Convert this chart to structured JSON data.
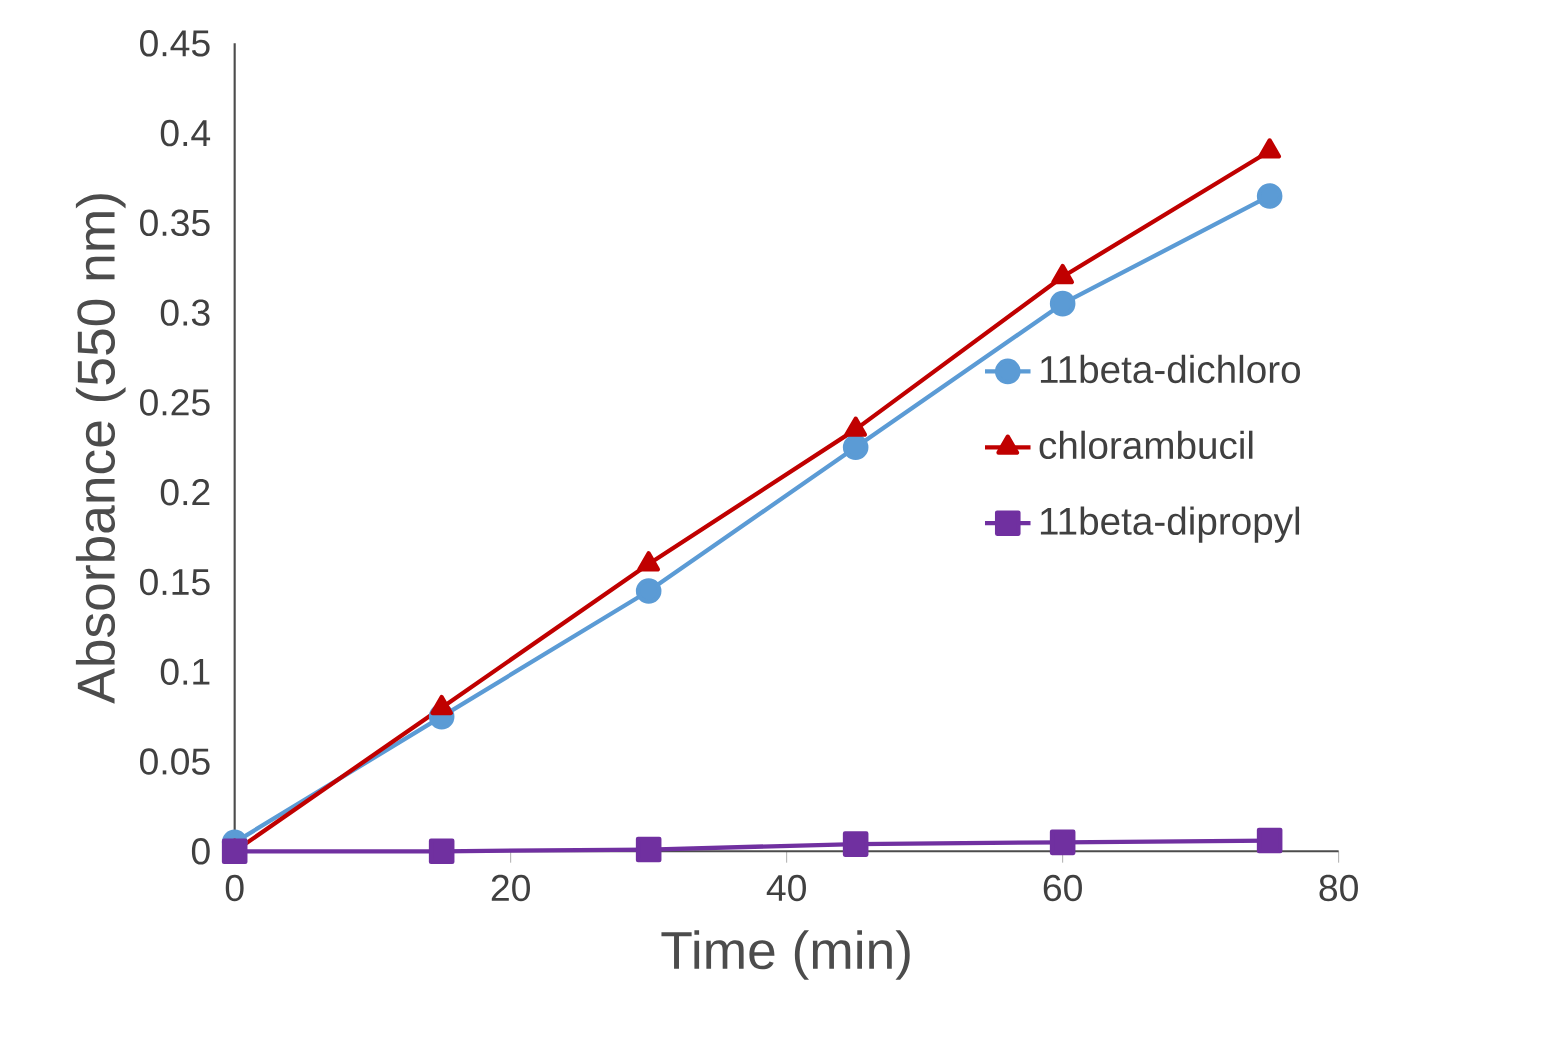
{
  "chart_data": {
    "type": "line",
    "xlabel": "Time (min)",
    "ylabel": "Absorbance (550 nm)",
    "x": [
      0,
      15,
      30,
      45,
      60,
      75
    ],
    "series": [
      {
        "name": "11beta-dichloro",
        "color": "#5b9bd5",
        "marker": "circle",
        "values": [
          0.005,
          0.075,
          0.145,
          0.225,
          0.305,
          0.365
        ]
      },
      {
        "name": "chlorambucil",
        "color": "#c00000",
        "marker": "triangle",
        "values": [
          0,
          0.08,
          0.16,
          0.235,
          0.32,
          0.39
        ]
      },
      {
        "name": "11beta-dipropyl",
        "color": "#7030a0",
        "marker": "square",
        "values": [
          0,
          0,
          0.001,
          0.004,
          0.005,
          0.006
        ]
      }
    ],
    "xlim": [
      0,
      80
    ],
    "xticks": [
      0,
      20,
      40,
      60,
      80
    ],
    "ylim": [
      0,
      0.45
    ],
    "yticks": [
      0,
      0.05,
      0.1,
      0.15,
      0.2,
      0.25,
      0.3,
      0.35,
      0.4,
      0.45
    ],
    "grid": false,
    "legend": "right",
    "line_style": "solid"
  }
}
